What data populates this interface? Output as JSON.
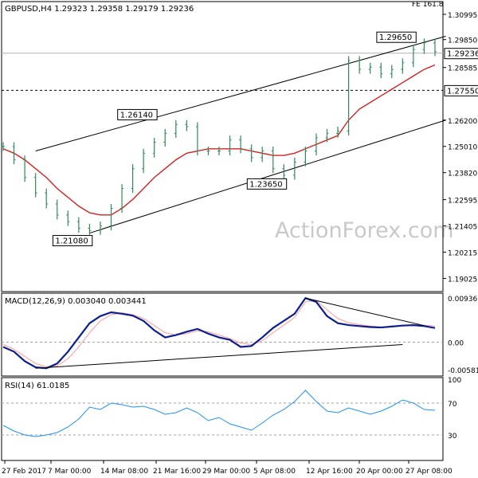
{
  "header": {
    "title": "GBPUSD,H4  1.29323 1.29358 1.29179 1.29236",
    "corner_label": "FE 161.8"
  },
  "watermark": "ActionForex.com",
  "colors": {
    "price_bars": "#2e8b57",
    "ma": "#d62020",
    "macd": "#0b1f8f",
    "signal": "#ff9a9a",
    "rsi": "#1e90ff",
    "trend": "#000000",
    "grid_dash": "#a0a0a0",
    "frame": "#000000",
    "label_bg": "#ffffff"
  },
  "chart_data": [
    {
      "type": "line",
      "title": "GBPUSD,H4",
      "ohlc_last": {
        "open": 1.29323,
        "high": 1.29358,
        "low": 1.29179,
        "close": 1.29236
      },
      "ylim": [
        1.185,
        1.315
      ],
      "y_ticks": [
        "1.30995",
        "1.29850",
        "1.28585",
        "1.26200",
        "1.25010",
        "1.23820",
        "1.22595",
        "1.21405",
        "1.20215",
        "1.19025"
      ],
      "x": [
        "27 Feb 2017",
        "7 Mar 00:00",
        "14 Mar 08:00",
        "21 Mar 16:00",
        "29 Mar 00:00",
        "5 Apr 08:00",
        "12 Apr 16:00",
        "20 Apr 00:00",
        "27 Apr 08:00"
      ],
      "price": [
        1.25,
        1.244,
        1.236,
        1.229,
        1.224,
        1.219,
        1.216,
        1.213,
        1.212,
        1.214,
        1.222,
        1.231,
        1.24,
        1.247,
        1.252,
        1.256,
        1.26,
        1.259,
        1.248,
        1.248,
        1.248,
        1.253,
        1.249,
        1.245,
        1.248,
        1.24,
        1.237,
        1.243,
        1.248,
        1.254,
        1.256,
        1.257,
        1.289,
        1.285,
        1.286,
        1.283,
        1.285,
        1.288,
        1.294,
        1.297,
        1.293
      ],
      "ma": [
        1.249,
        1.247,
        1.244,
        1.24,
        1.236,
        1.231,
        1.227,
        1.223,
        1.22,
        1.219,
        1.219,
        1.222,
        1.226,
        1.231,
        1.236,
        1.24,
        1.244,
        1.247,
        1.248,
        1.249,
        1.249,
        1.249,
        1.249,
        1.248,
        1.247,
        1.246,
        1.246,
        1.247,
        1.249,
        1.251,
        1.253,
        1.255,
        1.262,
        1.267,
        1.27,
        1.273,
        1.276,
        1.279,
        1.282,
        1.285,
        1.287
      ],
      "price_labels": [
        {
          "text": "1.26140",
          "x_index": 14,
          "value": 1.2614
        },
        {
          "text": "1.21080",
          "x_index": 8,
          "value": 1.2108
        },
        {
          "text": "1.23650",
          "x_index": 26,
          "value": 1.2365
        },
        {
          "text": "1.29650",
          "x_index": 38,
          "value": 1.2965
        }
      ],
      "current_price": {
        "text": "1.29236",
        "value": 1.29236
      },
      "level": {
        "text": "1.27550",
        "value": 1.2755
      },
      "channel_upper": [
        [
          3,
          1.248
        ],
        [
          41,
          1.3
        ]
      ],
      "channel_lower": [
        [
          8,
          1.2108
        ],
        [
          41,
          1.262
        ]
      ]
    },
    {
      "type": "line",
      "title": "MACD(12,26,9) 0.003040 0.003441",
      "ylim": [
        -0.0068,
        0.01
      ],
      "y_ticks": [
        "0.009367",
        "0.00",
        "-0.005819"
      ],
      "macd": [
        -0.001,
        -0.002,
        -0.004,
        -0.0053,
        -0.0055,
        -0.0045,
        -0.002,
        0.001,
        0.004,
        0.0055,
        0.0063,
        0.006,
        0.0056,
        0.0045,
        0.0025,
        0.001,
        0.0015,
        0.0022,
        0.0028,
        0.0018,
        0.001,
        0.0005,
        -0.001,
        -0.0008,
        0.001,
        0.003,
        0.0045,
        0.006,
        0.0093,
        0.0085,
        0.0055,
        0.004,
        0.0036,
        0.0034,
        0.0032,
        0.0031,
        0.0033,
        0.0035,
        0.0036,
        0.0034,
        0.003
      ],
      "signal": [
        -0.0005,
        -0.0015,
        -0.003,
        -0.0045,
        -0.0052,
        -0.005,
        -0.0035,
        -0.001,
        0.002,
        0.0045,
        0.0058,
        0.0062,
        0.0058,
        0.005,
        0.0035,
        0.002,
        0.0015,
        0.0018,
        0.0024,
        0.0022,
        0.0015,
        0.0008,
        -0.0002,
        -0.0005,
        0.0003,
        0.002,
        0.0036,
        0.0052,
        0.0085,
        0.0088,
        0.0068,
        0.005,
        0.0041,
        0.0037,
        0.0034,
        0.0032,
        0.0033,
        0.0035,
        0.0037,
        0.0036,
        0.0034
      ],
      "trend_lines": [
        {
          "from": [
            3,
            -0.0055
          ],
          "to": [
            37,
            -0.0005
          ]
        },
        {
          "from": [
            28,
            0.0093
          ],
          "to": [
            39,
            0.0035
          ]
        }
      ]
    },
    {
      "type": "line",
      "title": "RSI(14) 61.0185",
      "ylim": [
        0,
        100
      ],
      "y_ticks": [
        "100",
        "70",
        "30",
        "0"
      ],
      "rsi": [
        42,
        35,
        30,
        28,
        30,
        33,
        40,
        50,
        65,
        62,
        70,
        68,
        65,
        66,
        62,
        56,
        58,
        64,
        58,
        48,
        52,
        44,
        40,
        36,
        45,
        55,
        62,
        72,
        86,
        72,
        60,
        58,
        64,
        60,
        56,
        60,
        66,
        74,
        70,
        62,
        61
      ]
    }
  ]
}
